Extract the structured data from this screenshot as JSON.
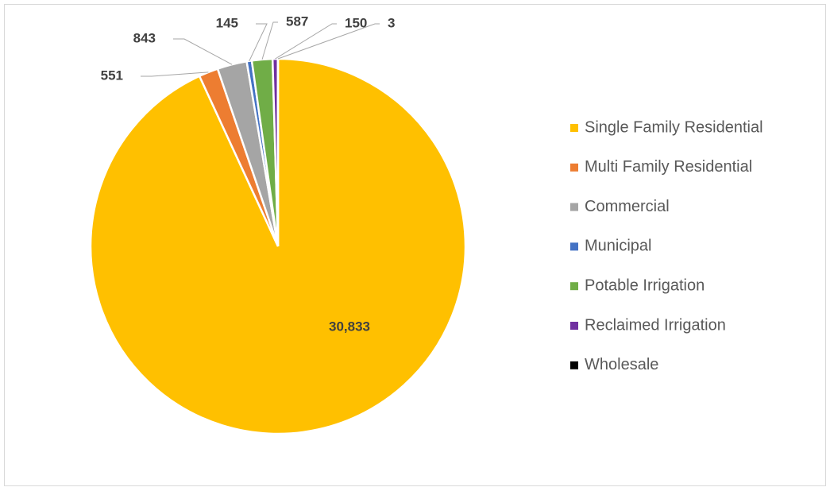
{
  "chart_data": {
    "type": "pie",
    "categories": [
      "Single Family Residential",
      "Multi Family Residential",
      "Commercial",
      "Municipal",
      "Potable Irrigation",
      "Reclaimed Irrigation",
      "Wholesale"
    ],
    "values": [
      30833,
      551,
      843,
      145,
      587,
      150,
      3
    ],
    "value_labels": [
      "30,833",
      "551",
      "843",
      "145",
      "587",
      "150",
      "3"
    ],
    "colors": [
      "#ffc000",
      "#ed7d31",
      "#a5a5a5",
      "#4472c4",
      "#70ad47",
      "#7030a0",
      "#000000"
    ],
    "legend": "right"
  }
}
